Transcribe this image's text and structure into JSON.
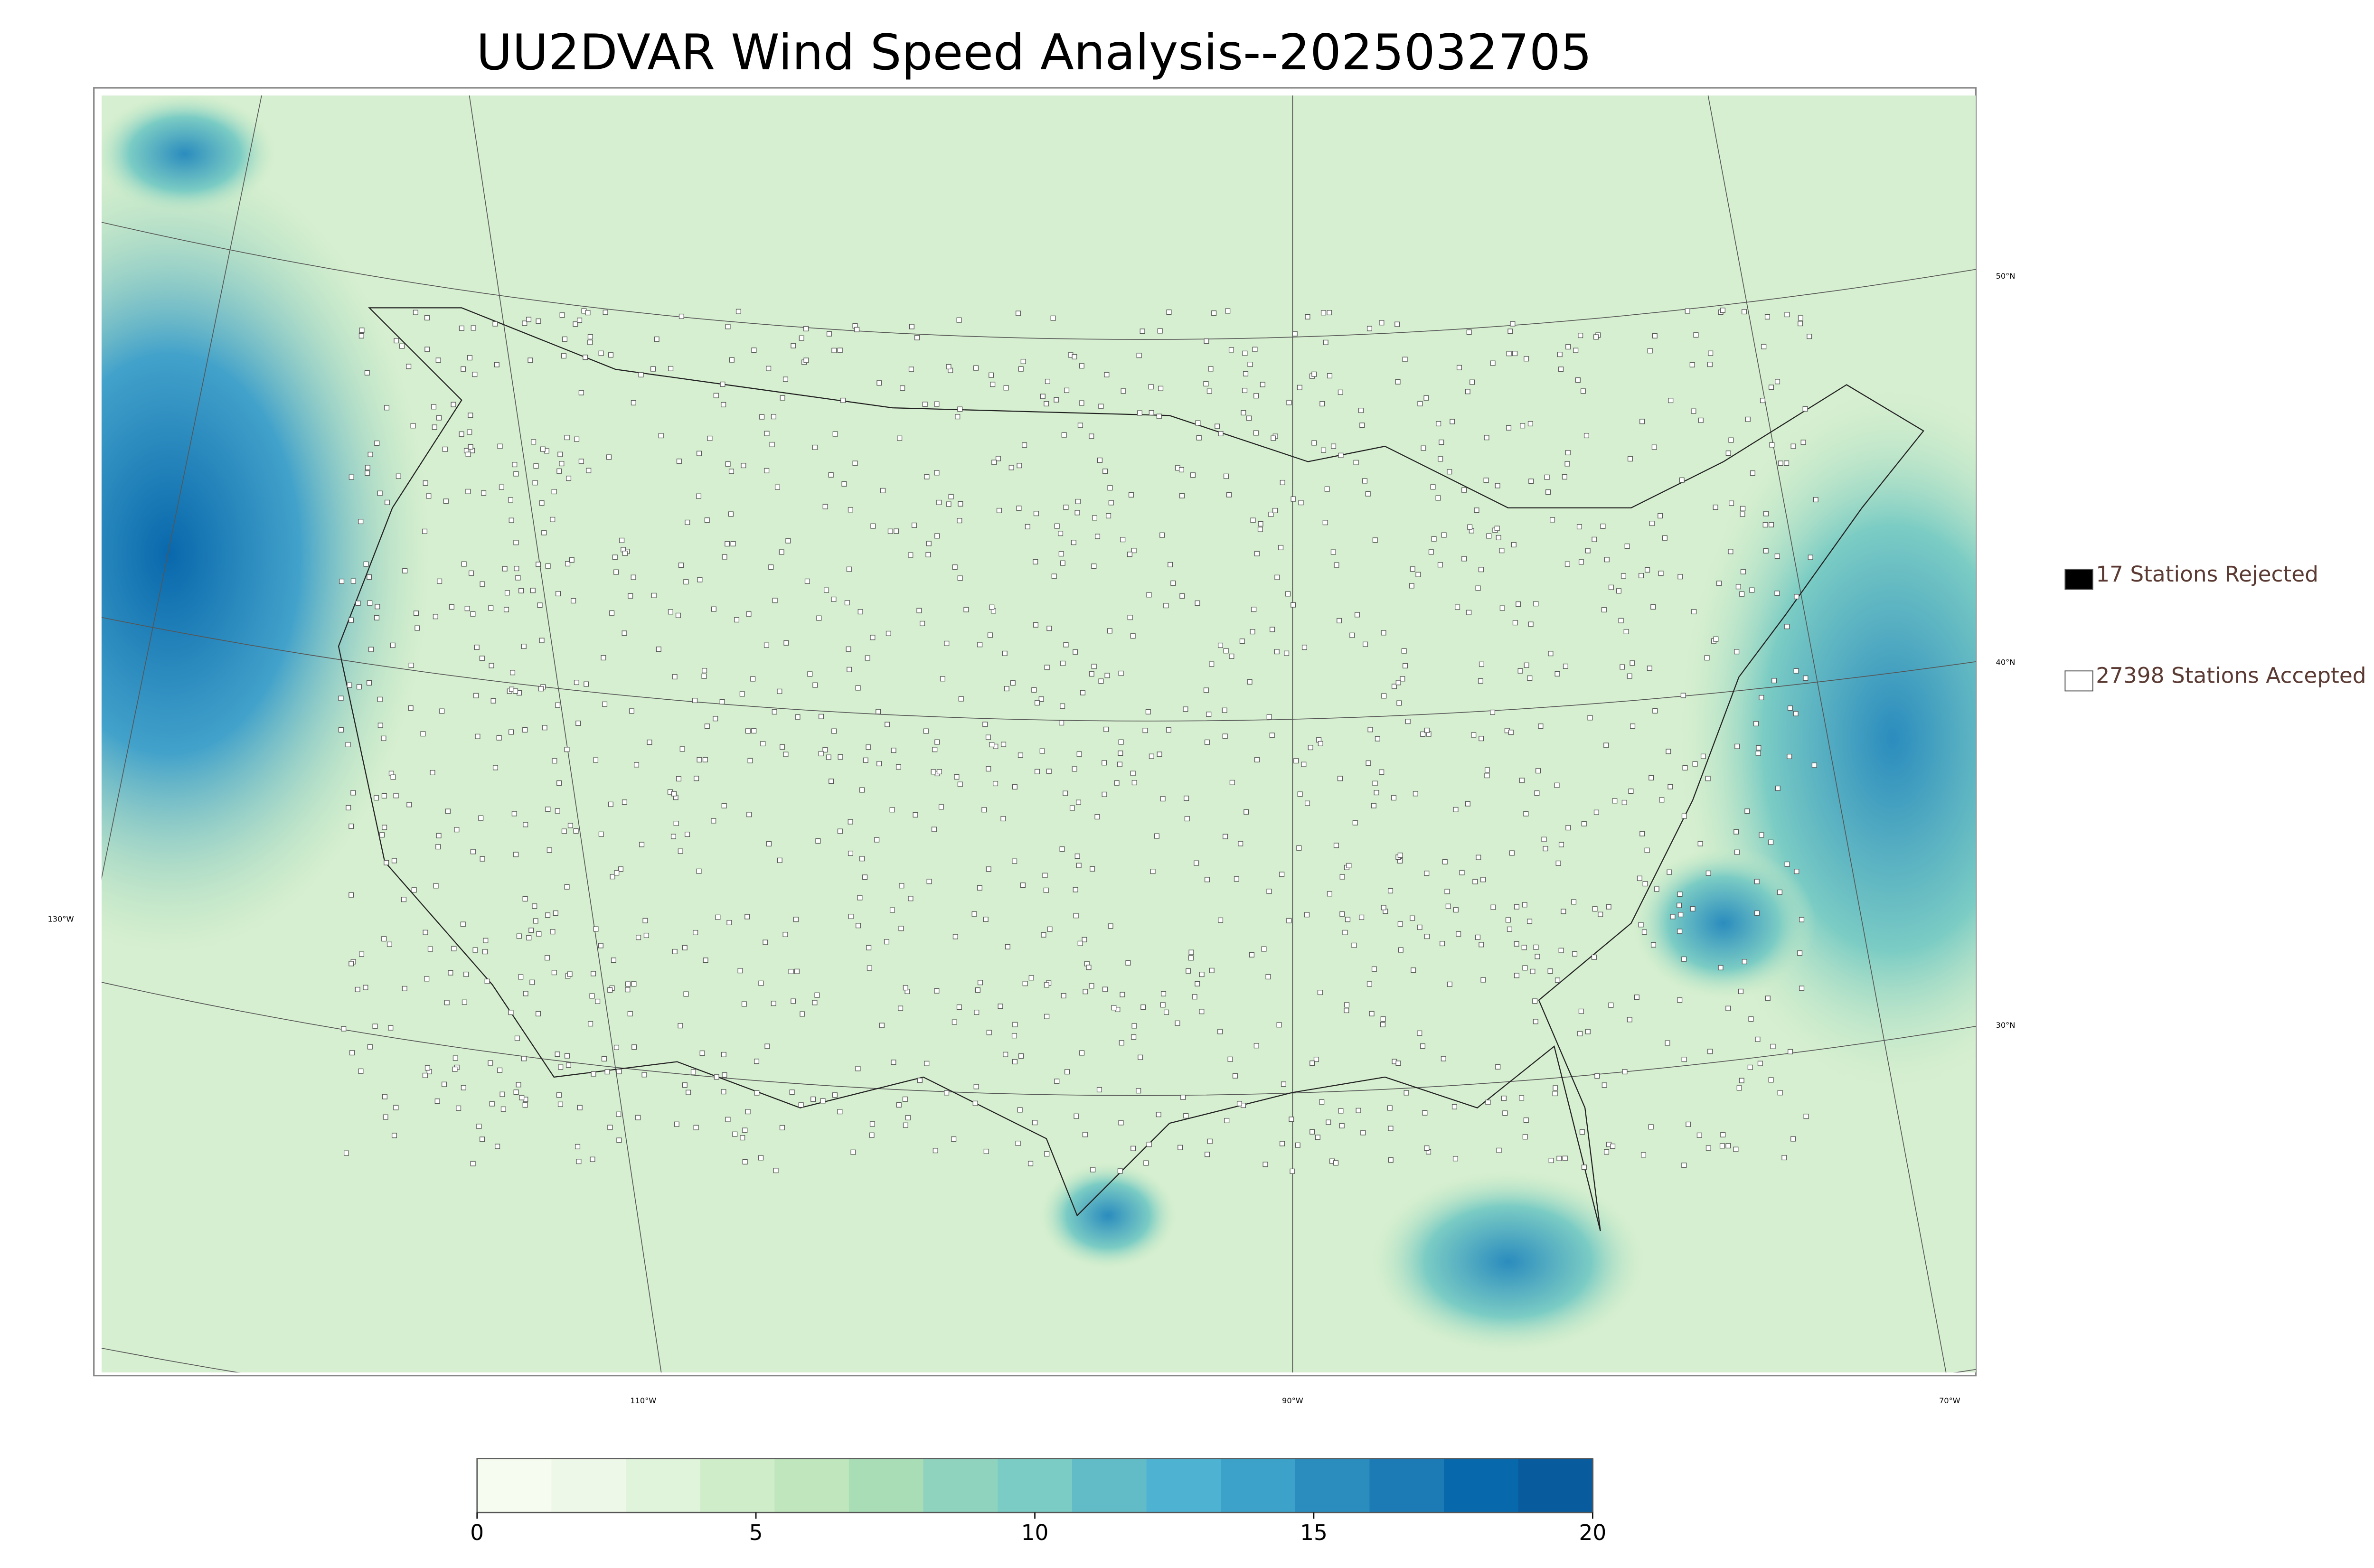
{
  "title": "UU2DVAR Wind Speed Analysis--2025032705",
  "map": {
    "lat_labels": [
      "50°N",
      "40°N",
      "30°N"
    ],
    "lon_labels": [
      "130°W",
      "110°W",
      "90°W",
      "70°W"
    ]
  },
  "legend": [
    {
      "label": "17 Stations Rejected",
      "color": "#000000"
    },
    {
      "label": "27398 Stations Accepted",
      "color": "#ffffff"
    }
  ],
  "colorbar": {
    "lim": [
      0,
      20
    ],
    "ticks": [
      0,
      5,
      10,
      15,
      20
    ],
    "colors": [
      "#f7fcf0",
      "#eef8e8",
      "#e0f3db",
      "#d0edca",
      "#bfe6bd",
      "#a8ddb5",
      "#8fd3be",
      "#7bccc4",
      "#62bcc8",
      "#4eb3d3",
      "#3ca2ca",
      "#2b8cbe",
      "#1c7bb5",
      "#0868ac",
      "#085b9c"
    ]
  }
}
